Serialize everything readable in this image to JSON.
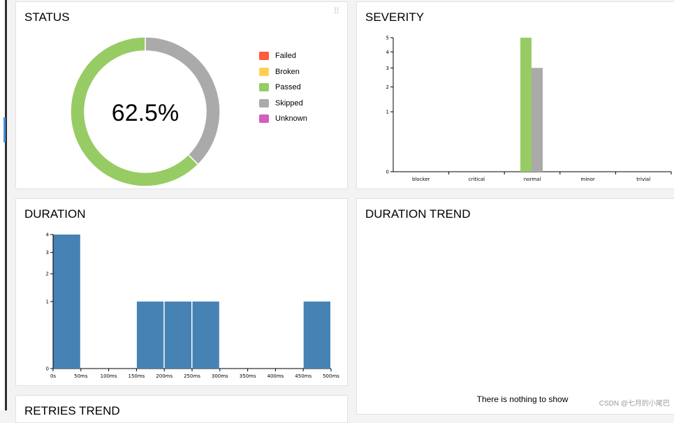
{
  "status": {
    "title": "STATUS",
    "percent": "62.5%",
    "ring": [
      {
        "name": "Passed",
        "value": 62.5,
        "color": "#97cc64"
      },
      {
        "name": "Skipped",
        "value": 37.5,
        "color": "#aaaaaa"
      }
    ],
    "legend": [
      {
        "label": "Failed",
        "color": "#fd5a3e"
      },
      {
        "label": "Broken",
        "color": "#ffd050"
      },
      {
        "label": "Passed",
        "color": "#97cc64"
      },
      {
        "label": "Skipped",
        "color": "#aaaaaa"
      },
      {
        "label": "Unknown",
        "color": "#d35ebe"
      }
    ]
  },
  "severity": {
    "title": "SEVERITY",
    "chart_data": {
      "type": "bar",
      "categories": [
        "blocker",
        "critical",
        "normal",
        "minor",
        "trivial"
      ],
      "series": [
        {
          "name": "Passed",
          "color": "#97cc64",
          "values": [
            0,
            0,
            5,
            0,
            0
          ]
        },
        {
          "name": "Skipped",
          "color": "#aaaaaa",
          "values": [
            0,
            0,
            3,
            0,
            0
          ]
        }
      ],
      "yticks": [
        0,
        1,
        2,
        3,
        4,
        5
      ],
      "ylim": [
        0,
        5
      ],
      "yscale": "sqrt"
    }
  },
  "duration": {
    "title": "DURATION",
    "chart_data": {
      "type": "bar",
      "categories": [
        "0s",
        "50ms",
        "100ms",
        "150ms",
        "200ms",
        "250ms",
        "300ms",
        "350ms",
        "400ms",
        "450ms",
        "500ms"
      ],
      "bins": [
        {
          "from": 0,
          "to": 50,
          "count": 4
        },
        {
          "from": 150,
          "to": 200,
          "count": 1
        },
        {
          "from": 200,
          "to": 250,
          "count": 1
        },
        {
          "from": 250,
          "to": 300,
          "count": 1
        },
        {
          "from": 450,
          "to": 500,
          "count": 1
        }
      ],
      "xlim": [
        0,
        500
      ],
      "yticks": [
        0,
        1,
        2,
        3,
        4
      ],
      "ylim": [
        0,
        4
      ],
      "yscale": "sqrt",
      "color": "#4682b4"
    }
  },
  "duration_trend": {
    "title": "DURATION TREND",
    "empty_message": "There is nothing to show"
  },
  "retries_trend": {
    "title": "RETRIES TREND"
  },
  "watermark": "CSDN @七月的小尾巴"
}
